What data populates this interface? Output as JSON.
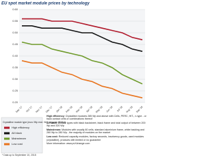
{
  "chart_data": {
    "type": "line",
    "title": "EU spot market module prices by technology",
    "categories": [
      "Sep '17",
      "Oct '17",
      "Nov '17",
      "Dec '17",
      "Jan '18",
      "Feb '18",
      "Mar '18",
      "Apr '18",
      "May '18",
      "Jun '18",
      "Jul '18",
      "Aug '18",
      "Sep '18"
    ],
    "series": [
      {
        "name": "High efficiency",
        "color": "#b0182a",
        "values": [
          0.56,
          0.56,
          0.56,
          0.55,
          0.55,
          0.55,
          0.54,
          0.53,
          0.52,
          0.51,
          0.5,
          0.48,
          0.47
        ]
      },
      {
        "name": "All black",
        "color": "#111111",
        "values": [
          0.53,
          0.53,
          0.52,
          0.52,
          0.52,
          0.51,
          0.5,
          0.5,
          0.48,
          0.46,
          0.45,
          0.43,
          0.42
        ]
      },
      {
        "name": "Mainstream",
        "color": "#6e9a2a",
        "values": [
          0.46,
          0.45,
          0.45,
          0.43,
          0.42,
          0.41,
          0.4,
          0.38,
          0.37,
          0.35,
          0.32,
          0.3,
          0.28
        ]
      },
      {
        "name": "Low cost",
        "color": "#e8731c",
        "values": [
          0.38,
          0.37,
          0.37,
          0.35,
          0.33,
          0.32,
          0.3,
          0.29,
          0.27,
          0.26,
          0.24,
          0.23,
          0.22
        ]
      }
    ],
    "ylim": [
      0.2,
      0.6
    ],
    "yticks": [
      {
        "value": 0.2,
        "label": "0.20"
      },
      0.25,
      {
        "value": 0.3,
        "label": "0.30"
      },
      0.35,
      {
        "value": 0.4,
        "label": "0.40"
      },
      0.45,
      {
        "value": 0.5,
        "label": "0.50"
      },
      0.55,
      {
        "value": 0.6,
        "label": "0.60"
      }
    ],
    "grid": true,
    "legend_title": "Crystalline module type (euro /Wp excl. VAT net price (€/Wp))",
    "footnote": "* Data up to September 10, 2018"
  },
  "descriptions": [
    {
      "term": "High efficiency:",
      "text": "Crystalline modules 285 Wp and above with Cells, PERC, HIT-, n-type - or back contact cells or combinations thereof"
    },
    {
      "term": "All black:",
      "text": "Module types with black backsheet, black frame and total output of between 200 Wp and 320 Wp"
    },
    {
      "term": "Mainstream:",
      "text": "Modules with usually 60 cells, standard aluminium frame, white backing and 260 Wp to 280 Wp - the majority of modules on the market"
    },
    {
      "term": "Low cost:",
      "text": "Reduced capacity modules, factory seconds, insolvency goods, used modules (crystalline), products with limited or no guarantee"
    }
  ],
  "more_info": "More information: www.pvXchange.com"
}
